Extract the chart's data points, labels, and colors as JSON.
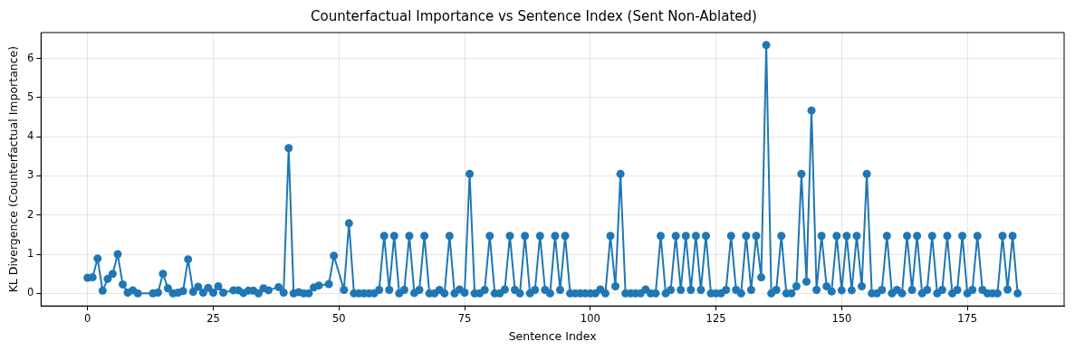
{
  "chart_data": {
    "type": "line",
    "title": "Counterfactual Importance vs Sentence Index (Sent Non-Ablated)",
    "xlabel": "Sentence Index",
    "ylabel": "KL Divergence (Counterfactual Importance)",
    "x": [
      0,
      1,
      2,
      3,
      4,
      5,
      6,
      7,
      8,
      9,
      10,
      13,
      14,
      15,
      16,
      17,
      18,
      19,
      20,
      21,
      22,
      23,
      24,
      25,
      26,
      27,
      29,
      30,
      31,
      32,
      33,
      34,
      35,
      36,
      38,
      39,
      40,
      41,
      42,
      43,
      44,
      45,
      46,
      48,
      49,
      51,
      52,
      53,
      54,
      55,
      56,
      57,
      58,
      59,
      60,
      61,
      62,
      63,
      64,
      65,
      66,
      67,
      68,
      69,
      70,
      71,
      72,
      73,
      74,
      75,
      76,
      77,
      78,
      79,
      80,
      81,
      82,
      83,
      84,
      85,
      86,
      87,
      88,
      89,
      90,
      91,
      92,
      93,
      94,
      95,
      96,
      97,
      98,
      99,
      100,
      101,
      102,
      103,
      104,
      105,
      106,
      107,
      108,
      109,
      110,
      111,
      112,
      113,
      114,
      115,
      116,
      117,
      118,
      119,
      120,
      121,
      122,
      123,
      124,
      125,
      126,
      127,
      128,
      129,
      130,
      131,
      132,
      133,
      134,
      135,
      136,
      137,
      138,
      139,
      140,
      141,
      142,
      143,
      144,
      145,
      146,
      147,
      148,
      149,
      150,
      151,
      152,
      153,
      154,
      155,
      156,
      157,
      158,
      159,
      160,
      161,
      162,
      163,
      164,
      165,
      166,
      167,
      168,
      169,
      170,
      171,
      172,
      173,
      174,
      175,
      176,
      177,
      178,
      179,
      180,
      181,
      182,
      183,
      184,
      185
    ],
    "series": [
      {
        "color": "#1f77b4",
        "values": [
          0.4,
          0.41,
          0.89,
          0.07,
          0.37,
          0.5,
          1.0,
          0.23,
          0.02,
          0.08,
          0,
          0,
          0.02,
          0.5,
          0.13,
          0,
          0.02,
          0.06,
          0.87,
          0.04,
          0.17,
          0.02,
          0.14,
          0.02,
          0.18,
          0.02,
          0.08,
          0.08,
          0.01,
          0.07,
          0.07,
          0,
          0.13,
          0.08,
          0.16,
          0.02,
          3.71,
          0,
          0.03,
          0,
          0,
          0.15,
          0.2,
          0.24,
          0.96,
          0.09,
          1.79,
          0,
          0,
          0,
          0,
          0,
          0.09,
          1.47,
          0.09,
          1.47,
          0,
          0.09,
          1.47,
          0.01,
          0.09,
          1.47,
          0,
          0,
          0.09,
          0,
          1.47,
          0,
          0.1,
          0.02,
          3.05,
          0,
          0,
          0.09,
          1.47,
          0,
          0,
          0.1,
          1.47,
          0.09,
          0,
          1.47,
          0,
          0.09,
          1.47,
          0.09,
          0,
          1.47,
          0.09,
          1.47,
          0,
          0,
          0,
          0,
          0,
          0,
          0.1,
          0,
          1.47,
          0.18,
          3.05,
          0,
          0,
          0,
          0,
          0.1,
          0,
          0,
          1.47,
          0,
          0.09,
          1.47,
          0.09,
          1.47,
          0.09,
          1.47,
          0.09,
          1.47,
          0,
          0,
          0,
          0.09,
          1.47,
          0.09,
          0,
          1.47,
          0.09,
          1.47,
          0.41,
          6.34,
          0,
          0.09,
          1.47,
          0,
          0,
          0.18,
          3.05,
          0.3,
          4.67,
          0.09,
          1.47,
          0.18,
          0.05,
          1.47,
          0.08,
          1.47,
          0.08,
          1.47,
          0.18,
          3.05,
          0,
          0,
          0.09,
          1.47,
          0,
          0.09,
          0,
          1.47,
          0.09,
          1.47,
          0,
          0.09,
          1.47,
          0,
          0.09,
          1.47,
          0,
          0.09,
          1.47,
          0,
          0.09,
          1.47,
          0.09,
          0,
          0,
          0,
          1.47,
          0.1,
          1.47,
          0
        ]
      }
    ],
    "xlim": [
      -9.25,
      194.25
    ],
    "ylim": [
      -0.32,
      6.66
    ],
    "xticks": [
      0,
      25,
      50,
      75,
      100,
      125,
      150,
      175
    ],
    "yticks": [
      0,
      1,
      2,
      3,
      4,
      5,
      6
    ],
    "grid": true,
    "marker": "circle",
    "line_style": "solid"
  }
}
